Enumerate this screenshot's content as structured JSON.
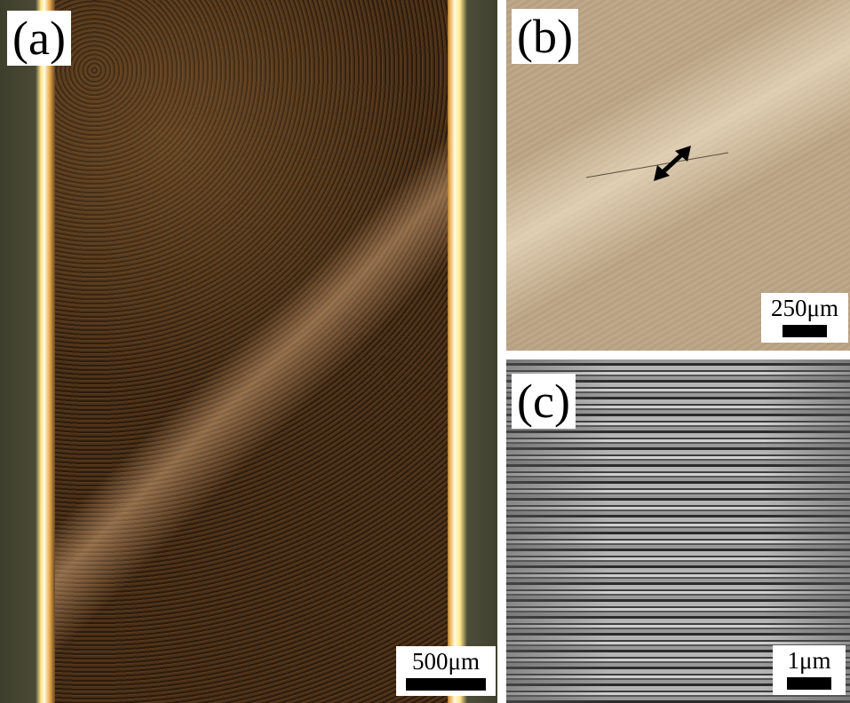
{
  "panels": [
    {
      "label": "(a)",
      "scale": "500μm"
    },
    {
      "label": "(b)",
      "scale": "250μm"
    },
    {
      "label": "(c)",
      "scale": "1μm"
    }
  ]
}
